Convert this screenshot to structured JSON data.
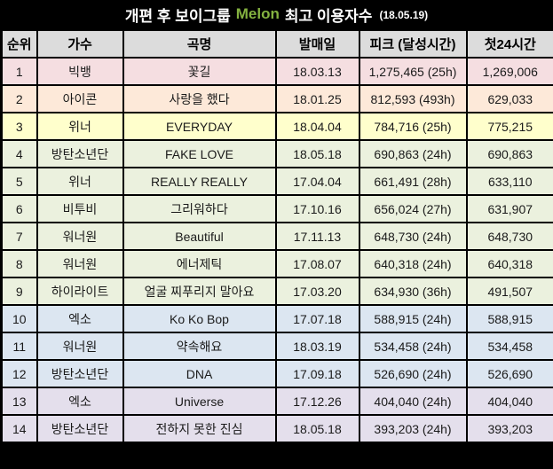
{
  "title": {
    "prefix": "개편 후 보이그룹",
    "brand": "Melon",
    "suffix": "최고 이용자수",
    "date": "(18.05.19)",
    "brand_color": "#84b240",
    "bar_bg": "#000000",
    "text_color": "#ffffff"
  },
  "table": {
    "headers": {
      "rank": "순위",
      "artist": "가수",
      "song": "곡명",
      "release_date": "발매일",
      "peak": "피크 (달성시간)",
      "first_24h": "첫24시간"
    },
    "header_bg": "#dcdcdc",
    "border_color": "#000000",
    "rows": [
      {
        "rank": "1",
        "artist": "빅뱅",
        "song": "꽃길",
        "release_date": "18.03.13",
        "peak": "1,275,465 (25h)",
        "first_24h": "1,269,006",
        "row_color": "#f5dee1"
      },
      {
        "rank": "2",
        "artist": "아이콘",
        "song": "사랑을 했다",
        "release_date": "18.01.25",
        "peak": "812,593 (493h)",
        "first_24h": "629,033",
        "row_color": "#fde9d9"
      },
      {
        "rank": "3",
        "artist": "위너",
        "song": "EVERYDAY",
        "release_date": "18.04.04",
        "peak": "784,716 (25h)",
        "first_24h": "775,215",
        "row_color": "#ffffcc"
      },
      {
        "rank": "4",
        "artist": "방탄소년단",
        "song": "FAKE LOVE",
        "release_date": "18.05.18",
        "peak": "690,863 (24h)",
        "first_24h": "690,863",
        "row_color": "#ebf1de"
      },
      {
        "rank": "5",
        "artist": "위너",
        "song": "REALLY REALLY",
        "release_date": "17.04.04",
        "peak": "661,491 (28h)",
        "first_24h": "633,110",
        "row_color": "#ebf1de"
      },
      {
        "rank": "6",
        "artist": "비투비",
        "song": "그리워하다",
        "release_date": "17.10.16",
        "peak": "656,024 (27h)",
        "first_24h": "631,907",
        "row_color": "#ebf1de"
      },
      {
        "rank": "7",
        "artist": "워너원",
        "song": "Beautiful",
        "release_date": "17.11.13",
        "peak": "648,730 (24h)",
        "first_24h": "648,730",
        "row_color": "#ebf1de"
      },
      {
        "rank": "8",
        "artist": "워너원",
        "song": "에너제틱",
        "release_date": "17.08.07",
        "peak": "640,318 (24h)",
        "first_24h": "640,318",
        "row_color": "#ebf1de"
      },
      {
        "rank": "9",
        "artist": "하이라이트",
        "song": "얼굴 찌푸리지 말아요",
        "release_date": "17.03.20",
        "peak": "634,930 (36h)",
        "first_24h": "491,507",
        "row_color": "#ebf1de"
      },
      {
        "rank": "10",
        "artist": "엑소",
        "song": "Ko Ko Bop",
        "release_date": "17.07.18",
        "peak": "588,915 (24h)",
        "first_24h": "588,915",
        "row_color": "#dce6f1"
      },
      {
        "rank": "11",
        "artist": "워너원",
        "song": "약속해요",
        "release_date": "18.03.19",
        "peak": "534,458 (24h)",
        "first_24h": "534,458",
        "row_color": "#dce6f1"
      },
      {
        "rank": "12",
        "artist": "방탄소년단",
        "song": "DNA",
        "release_date": "17.09.18",
        "peak": "526,690 (24h)",
        "first_24h": "526,690",
        "row_color": "#dce6f1"
      },
      {
        "rank": "13",
        "artist": "엑소",
        "song": "Universe",
        "release_date": "17.12.26",
        "peak": "404,040 (24h)",
        "first_24h": "404,040",
        "row_color": "#e4dfec"
      },
      {
        "rank": "14",
        "artist": "방탄소년단",
        "song": "전하지 못한 진심",
        "release_date": "18.05.18",
        "peak": "393,203 (24h)",
        "first_24h": "393,203",
        "row_color": "#e4dfec"
      }
    ]
  }
}
